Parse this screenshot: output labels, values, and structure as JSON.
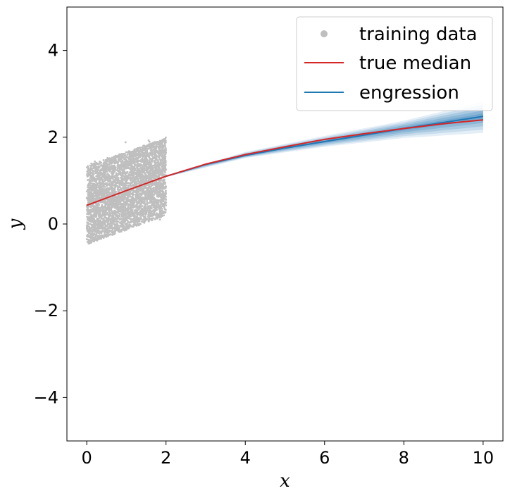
{
  "chart_data": {
    "type": "scatter",
    "xlabel": "x",
    "ylabel": "y",
    "xlim": [
      -0.5,
      10.5
    ],
    "ylim": [
      -5,
      5
    ],
    "xticks": [
      0,
      2,
      4,
      6,
      8,
      10
    ],
    "yticks": [
      -4,
      -2,
      0,
      2,
      4
    ],
    "xtick_labels": [
      "0",
      "2",
      "4",
      "6",
      "8",
      "10"
    ],
    "ytick_labels": [
      "−4",
      "−2",
      "0",
      "2",
      "4"
    ],
    "grid": false,
    "legend": "top-right",
    "legend_entries": [
      "training data",
      "true median",
      "engression"
    ],
    "series": [
      {
        "name": "training data",
        "kind": "scatter",
        "color": "#bfbfbf",
        "x_range": [
          0,
          2
        ],
        "center_line": {
          "x": [
            0,
            2
          ],
          "y": [
            0.43,
            1.1
          ]
        },
        "spread": [
          -0.9,
          0.9
        ]
      },
      {
        "name": "true median",
        "kind": "line",
        "color": "#d62728",
        "x": [
          0,
          1,
          2,
          3,
          4,
          5,
          6,
          7,
          8,
          9,
          10
        ],
        "y": [
          0.43,
          0.77,
          1.1,
          1.38,
          1.6,
          1.78,
          1.95,
          2.08,
          2.2,
          2.31,
          2.4
        ]
      },
      {
        "name": "engression",
        "kind": "line",
        "color": "#1f77b4",
        "x": [
          2,
          3,
          4,
          5,
          6,
          7,
          8,
          9,
          10
        ],
        "y": [
          1.1,
          1.37,
          1.58,
          1.75,
          1.9,
          2.05,
          2.2,
          2.34,
          2.48
        ]
      }
    ],
    "bands": {
      "color": "#1f77b4",
      "x": [
        2,
        4,
        6,
        8,
        10
      ],
      "lower": [
        1.08,
        1.52,
        1.78,
        1.98,
        2.1
      ],
      "upper": [
        1.12,
        1.66,
        2.03,
        2.38,
        2.82
      ]
    }
  }
}
